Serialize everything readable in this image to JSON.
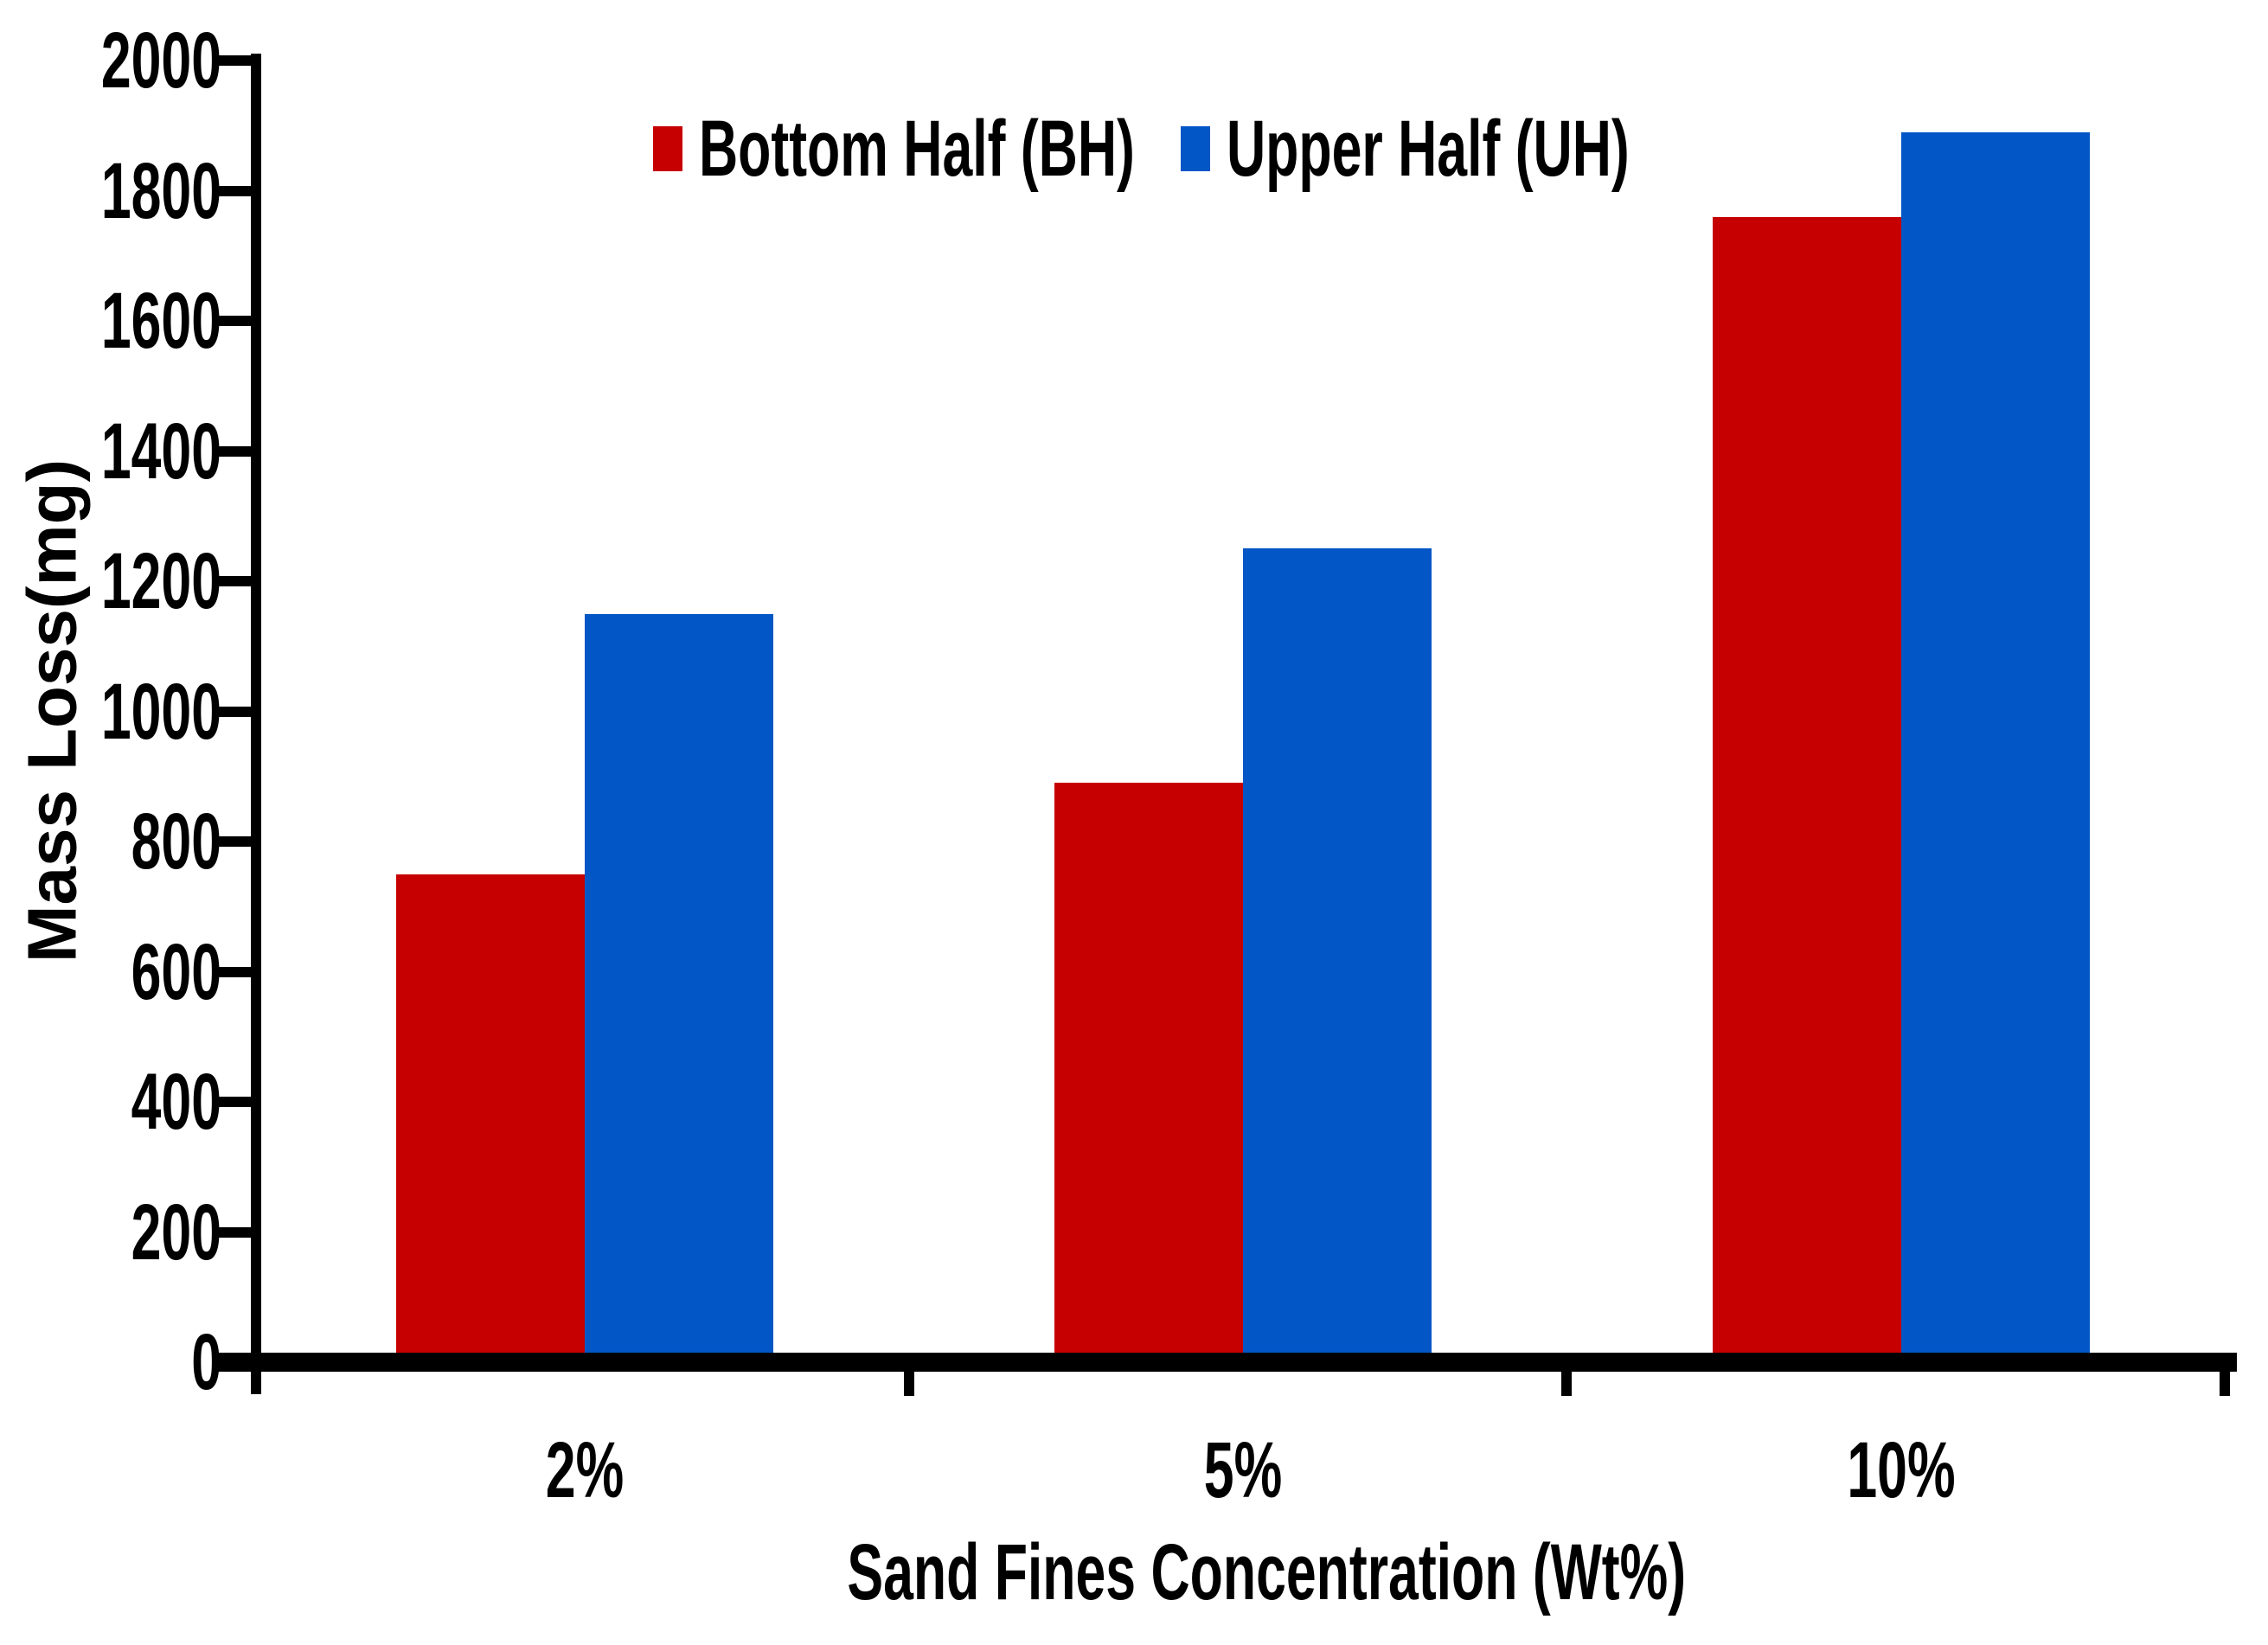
{
  "chart_data": {
    "type": "bar",
    "categories": [
      "2%",
      "5%",
      "10%"
    ],
    "series": [
      {
        "name": "Bottom Half (BH)",
        "color": "#C60000",
        "values": [
          750,
          890,
          1760
        ]
      },
      {
        "name": "Upper Half (UH)",
        "color": "#0356C6",
        "values": [
          1150,
          1250,
          1890
        ]
      }
    ],
    "title": "",
    "xlabel": "Sand Fines Concentration (Wt%)",
    "ylabel": "Mass Loss(mg)",
    "ylim": [
      0,
      2000
    ],
    "ytick_step": 200,
    "y_tick_labels": [
      "0",
      "200",
      "400",
      "600",
      "800",
      "1000",
      "1200",
      "1400",
      "1600",
      "1800",
      "2000"
    ],
    "grid": false,
    "legend_position": "top-center",
    "axis_color": "#000000",
    "background": "#FFFFFF"
  }
}
